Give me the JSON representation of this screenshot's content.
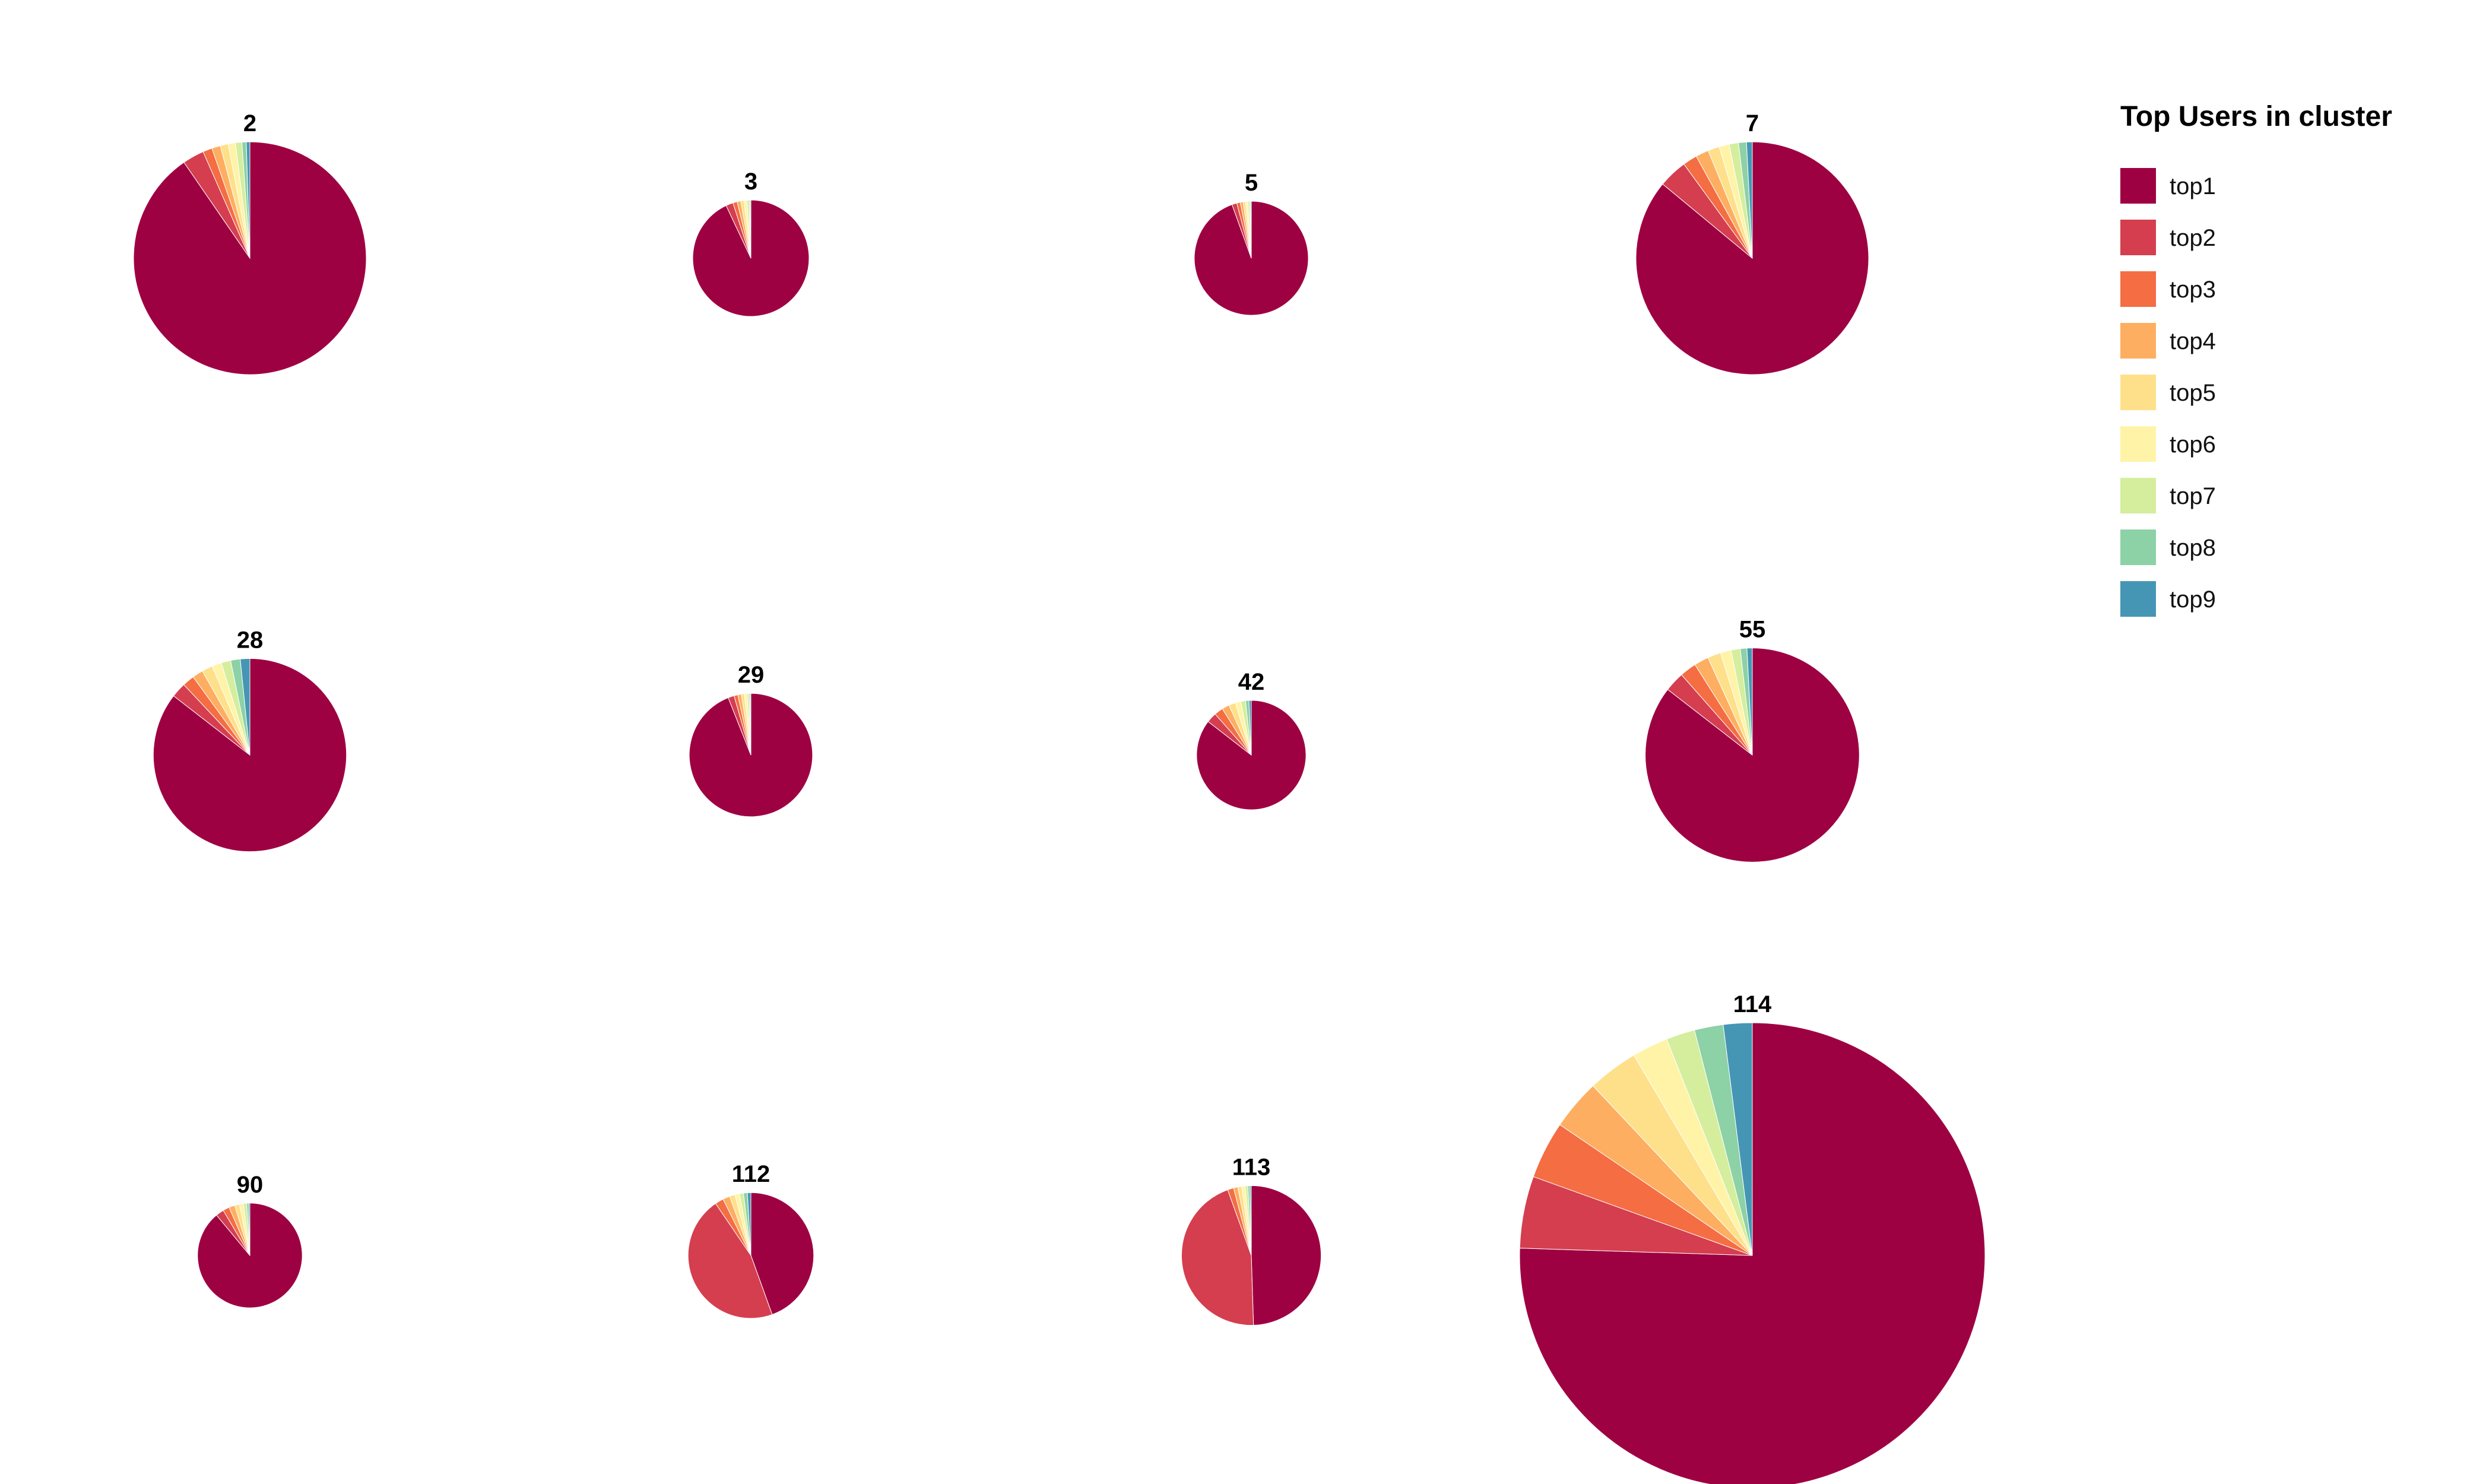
{
  "legend": {
    "title": "Top Users in cluster",
    "entries": [
      "top1",
      "top2",
      "top3",
      "top4",
      "top5",
      "top6",
      "top7",
      "top8",
      "top9"
    ]
  },
  "colors": [
    "#9e0142",
    "#d53e4f",
    "#f46d43",
    "#fdae61",
    "#fee08b",
    "#fff3a8",
    "#d4ee9e",
    "#8dd1a6",
    "#4596b4",
    "#5e4fa2"
  ],
  "chart_data": {
    "type": "pie",
    "series_names": [
      "top1",
      "top2",
      "top3",
      "top4",
      "top5",
      "top6",
      "top7",
      "top8",
      "top9"
    ],
    "pies": [
      {
        "title": "2",
        "size": 1.0,
        "values": [
          90.5,
          3.0,
          1.3,
          1.2,
          1.1,
          1.0,
          0.9,
          0.6,
          0.5
        ]
      },
      {
        "title": "3",
        "size": 0.5,
        "values": [
          93.0,
          2.0,
          1.2,
          1.0,
          0.9,
          0.8,
          0.6,
          0.3,
          0.2
        ]
      },
      {
        "title": "5",
        "size": 0.49,
        "values": [
          94.5,
          1.4,
          1.0,
          0.8,
          0.7,
          0.6,
          0.5,
          0.3,
          0.2
        ]
      },
      {
        "title": "7",
        "size": 1.0,
        "values": [
          86.0,
          4.0,
          2.0,
          1.8,
          1.6,
          1.4,
          1.3,
          1.1,
          0.8
        ]
      },
      {
        "title": "28",
        "size": 0.83,
        "values": [
          85.5,
          2.5,
          2.0,
          1.8,
          1.8,
          1.6,
          1.6,
          1.6,
          1.6
        ]
      },
      {
        "title": "29",
        "size": 0.53,
        "values": [
          94.0,
          1.6,
          1.0,
          0.9,
          0.8,
          0.7,
          0.5,
          0.3,
          0.2
        ]
      },
      {
        "title": "42",
        "size": 0.47,
        "values": [
          85.5,
          3.0,
          2.6,
          2.2,
          2.0,
          1.6,
          1.4,
          1.0,
          0.7
        ]
      },
      {
        "title": "55",
        "size": 0.92,
        "values": [
          85.5,
          3.0,
          2.5,
          2.2,
          2.0,
          1.6,
          1.4,
          1.0,
          0.8
        ]
      },
      {
        "title": "90",
        "size": 0.45,
        "values": [
          89.0,
          2.5,
          2.0,
          1.8,
          1.5,
          1.2,
          1.0,
          0.6,
          0.4
        ]
      },
      {
        "title": "112",
        "size": 0.54,
        "values": [
          44.5,
          46.0,
          2.2,
          1.8,
          1.4,
          1.2,
          1.0,
          1.0,
          0.9
        ]
      },
      {
        "title": "113",
        "size": 0.6,
        "values": [
          49.5,
          45.0,
          1.4,
          1.0,
          0.9,
          0.8,
          0.6,
          0.5,
          0.3
        ]
      },
      {
        "title": "114",
        "size": 2.0,
        "values": [
          75.5,
          5.0,
          4.0,
          3.5,
          3.5,
          2.5,
          2.0,
          2.0,
          2.0
        ]
      }
    ]
  }
}
